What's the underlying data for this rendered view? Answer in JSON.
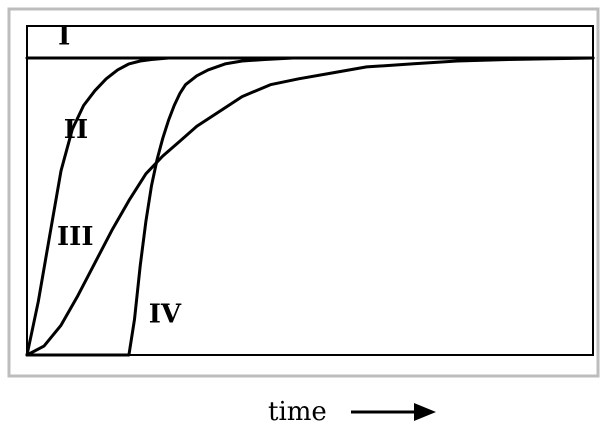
{
  "chart_data": {
    "type": "line",
    "title": "",
    "xlabel": "time",
    "ylabel": "",
    "grid": false,
    "legend": "none",
    "series": [
      {
        "name": "I",
        "x": [
          0,
          100
        ],
        "y": [
          100,
          100
        ]
      },
      {
        "name": "II",
        "x": [
          0,
          2,
          4,
          6,
          8,
          10,
          12,
          14,
          16,
          18,
          20,
          22,
          25,
          28,
          32,
          38,
          45,
          55,
          70,
          85,
          100
        ],
        "y": [
          0,
          18,
          40,
          62,
          76,
          84,
          89,
          93,
          96,
          98,
          99,
          99.5,
          100,
          100,
          100,
          100,
          100,
          100,
          100,
          100,
          100
        ]
      },
      {
        "name": "III",
        "x": [
          0,
          3,
          6,
          9,
          12,
          15,
          18,
          21,
          24,
          27,
          30,
          34,
          38,
          43,
          48,
          54,
          60,
          68,
          76,
          85,
          100
        ],
        "y": [
          0,
          3,
          10,
          20,
          31,
          42,
          52,
          61,
          67,
          72,
          77,
          82,
          87,
          91,
          93,
          95,
          97,
          98,
          99,
          99.5,
          100
        ]
      },
      {
        "name": "IV",
        "x": [
          0,
          6,
          10,
          14,
          18,
          19,
          20,
          21,
          22,
          23,
          24,
          25,
          26,
          27,
          28,
          30,
          32,
          35,
          38,
          42,
          47,
          55,
          65,
          80,
          100
        ],
        "y": [
          0,
          0,
          0,
          0,
          0,
          12,
          30,
          45,
          57,
          66,
          73,
          79,
          84,
          88,
          91,
          94,
          96,
          98,
          99,
          99.5,
          100,
          100,
          100,
          100,
          100
        ]
      }
    ]
  },
  "labels": [
    {
      "text": "I",
      "series": "I",
      "at_x": 5.5,
      "at_y": 104.5
    },
    {
      "text": "II",
      "series": "II",
      "at_x": 6.5,
      "at_y": 73
    },
    {
      "text": "III",
      "series": "III",
      "at_x": 5.3,
      "at_y": 37
    },
    {
      "text": "IV",
      "series": "IV",
      "at_x": 21.5,
      "at_y": 11
    }
  ],
  "x_axis": {
    "label": "time",
    "arrow": "right-arrow"
  }
}
